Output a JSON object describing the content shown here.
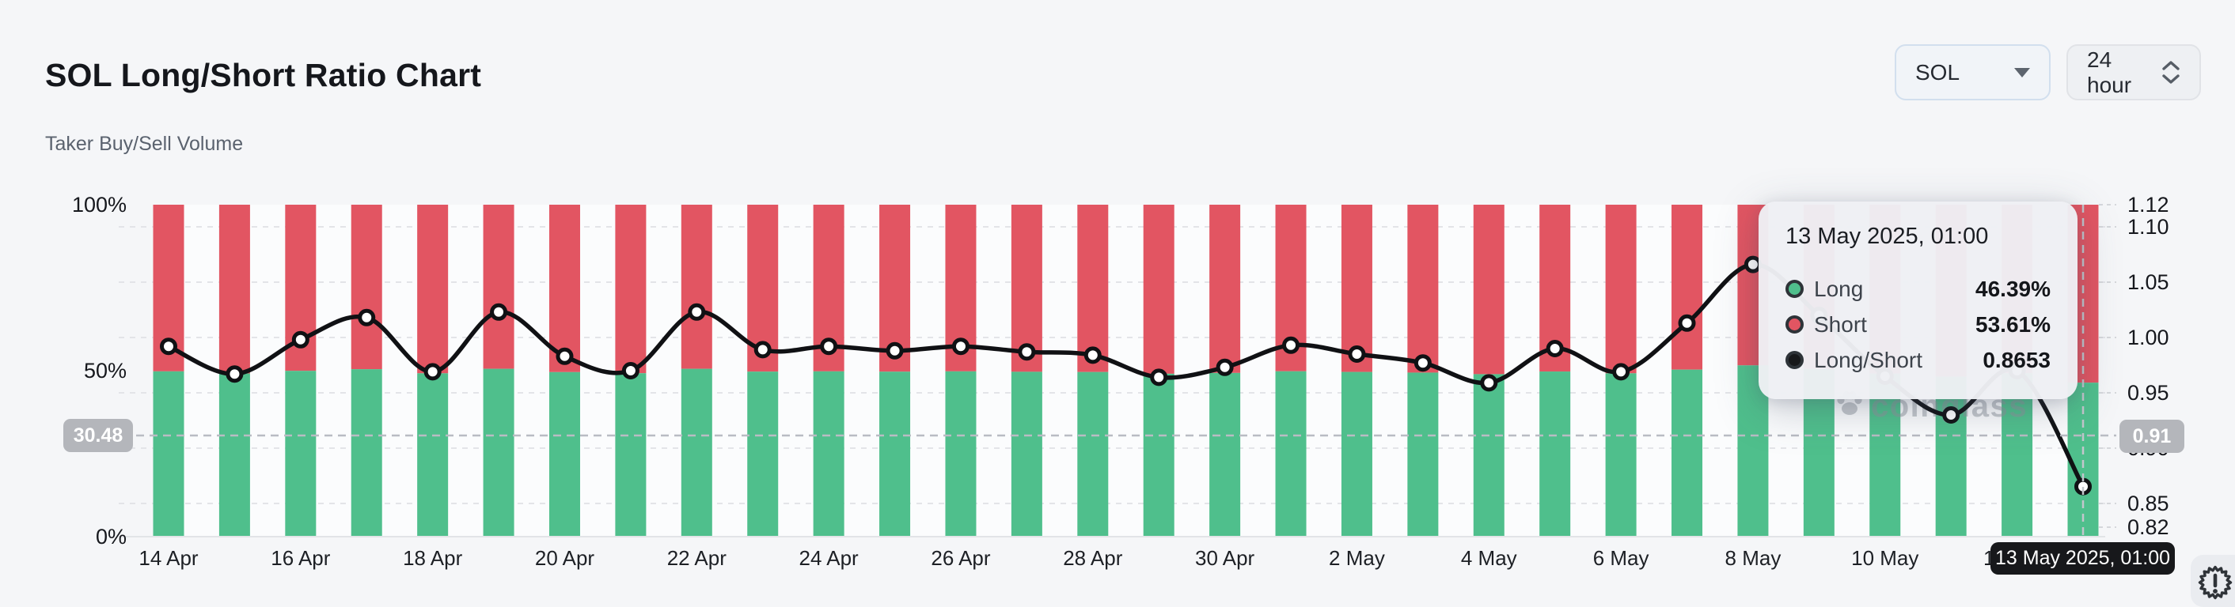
{
  "header": {
    "title": "SOL Long/Short Ratio Chart",
    "subtitle": "Taker Buy/Sell Volume"
  },
  "controls": {
    "symbol_dropdown": {
      "value": "SOL",
      "icon": "caret-down-icon"
    },
    "interval_dropdown": {
      "value": "24 hour",
      "icon": "up-down-chevrons-icon"
    }
  },
  "watermark_text": "coinglass",
  "crosshair": {
    "left_axis_badge": "30.48",
    "right_axis_badge": "0.91",
    "x_axis_tooltip": "13 May 2025, 01:00"
  },
  "tooltip": {
    "date": "13 May 2025, 01:00",
    "rows": [
      {
        "label": "Long",
        "value": "46.39%",
        "marker_color": "#4fbf8c"
      },
      {
        "label": "Short",
        "value": "53.61%",
        "marker_color": "#e25562"
      },
      {
        "label": "Long/Short",
        "value": "0.8653",
        "marker_color": "#17181a"
      }
    ]
  },
  "icons": {
    "bottom_right": "alert-seal-icon"
  },
  "chart_data": {
    "type": "bar",
    "subtype": "stacked-percent-bars-with-ratio-line",
    "title": "SOL Long/Short Ratio Chart",
    "categories": [
      "14 Apr",
      "15 Apr",
      "16 Apr",
      "17 Apr",
      "18 Apr",
      "19 Apr",
      "20 Apr",
      "21 Apr",
      "22 Apr",
      "23 Apr",
      "24 Apr",
      "25 Apr",
      "26 Apr",
      "27 Apr",
      "28 Apr",
      "29 Apr",
      "30 Apr",
      "1 May",
      "2 May",
      "3 May",
      "4 May",
      "5 May",
      "6 May",
      "7 May",
      "8 May",
      "9 May",
      "10 May",
      "11 May",
      "12 May",
      "13 May"
    ],
    "series": [
      {
        "name": "Long",
        "type": "bar",
        "unit": "%",
        "color": "#4fbf8c",
        "values": [
          49.8,
          49.16,
          49.95,
          50.45,
          49.21,
          50.57,
          49.57,
          49.24,
          50.57,
          49.72,
          49.8,
          49.7,
          49.8,
          49.67,
          49.6,
          49.08,
          49.32,
          49.82,
          49.62,
          49.42,
          48.95,
          49.75,
          49.21,
          50.32,
          51.6,
          50.5,
          49.11,
          48.19,
          49.24,
          46.39
        ]
      },
      {
        "name": "Short",
        "type": "bar",
        "unit": "%",
        "color": "#e25562",
        "values": [
          50.2,
          50.84,
          50.05,
          49.55,
          50.79,
          49.43,
          50.43,
          50.76,
          49.43,
          50.28,
          50.2,
          50.3,
          50.2,
          50.33,
          50.4,
          50.92,
          50.68,
          50.18,
          50.38,
          50.58,
          51.05,
          50.25,
          50.79,
          49.68,
          48.4,
          49.5,
          50.89,
          51.81,
          50.76,
          53.61
        ]
      },
      {
        "name": "Long/Short",
        "type": "line",
        "axis": "right",
        "color": "#111316",
        "values": [
          0.992,
          0.967,
          0.998,
          1.018,
          0.969,
          1.023,
          0.983,
          0.97,
          1.023,
          0.989,
          0.992,
          0.988,
          0.992,
          0.987,
          0.984,
          0.964,
          0.973,
          0.993,
          0.985,
          0.977,
          0.959,
          0.99,
          0.969,
          1.013,
          1.066,
          1.02,
          0.965,
          0.93,
          0.97,
          0.8653
        ]
      }
    ],
    "x_tick_labels": [
      "14 Apr",
      "16 Apr",
      "18 Apr",
      "20 Apr",
      "22 Apr",
      "24 Apr",
      "26 Apr",
      "28 Apr",
      "30 Apr",
      "2 May",
      "4 May",
      "6 May",
      "8 May",
      "10 May",
      "12 May"
    ],
    "left_axis": {
      "range": [
        0,
        100
      ],
      "unit": "%",
      "ticks": [
        100,
        50,
        0
      ],
      "tick_labels": [
        "100%",
        "50%",
        "0%"
      ]
    },
    "right_axis": {
      "range": [
        0.82,
        1.12
      ],
      "ticks": [
        1.12,
        1.1,
        1.05,
        1.0,
        0.95,
        0.9,
        0.85,
        0.82
      ],
      "tick_labels": [
        "1.12",
        "1.10",
        "1.05",
        "1.00",
        "0.95",
        "0.90",
        "0.85",
        "0.82"
      ]
    },
    "gridlines": {
      "right_axis_values": [
        1.1,
        1.05,
        1.0,
        0.95,
        0.9,
        0.85
      ],
      "style": "dashed"
    },
    "legend_position": "tooltip",
    "highlighted_index": 29,
    "crosshair": {
      "left_value": 30.48,
      "right_value": 0.91,
      "x_index": 29
    }
  }
}
